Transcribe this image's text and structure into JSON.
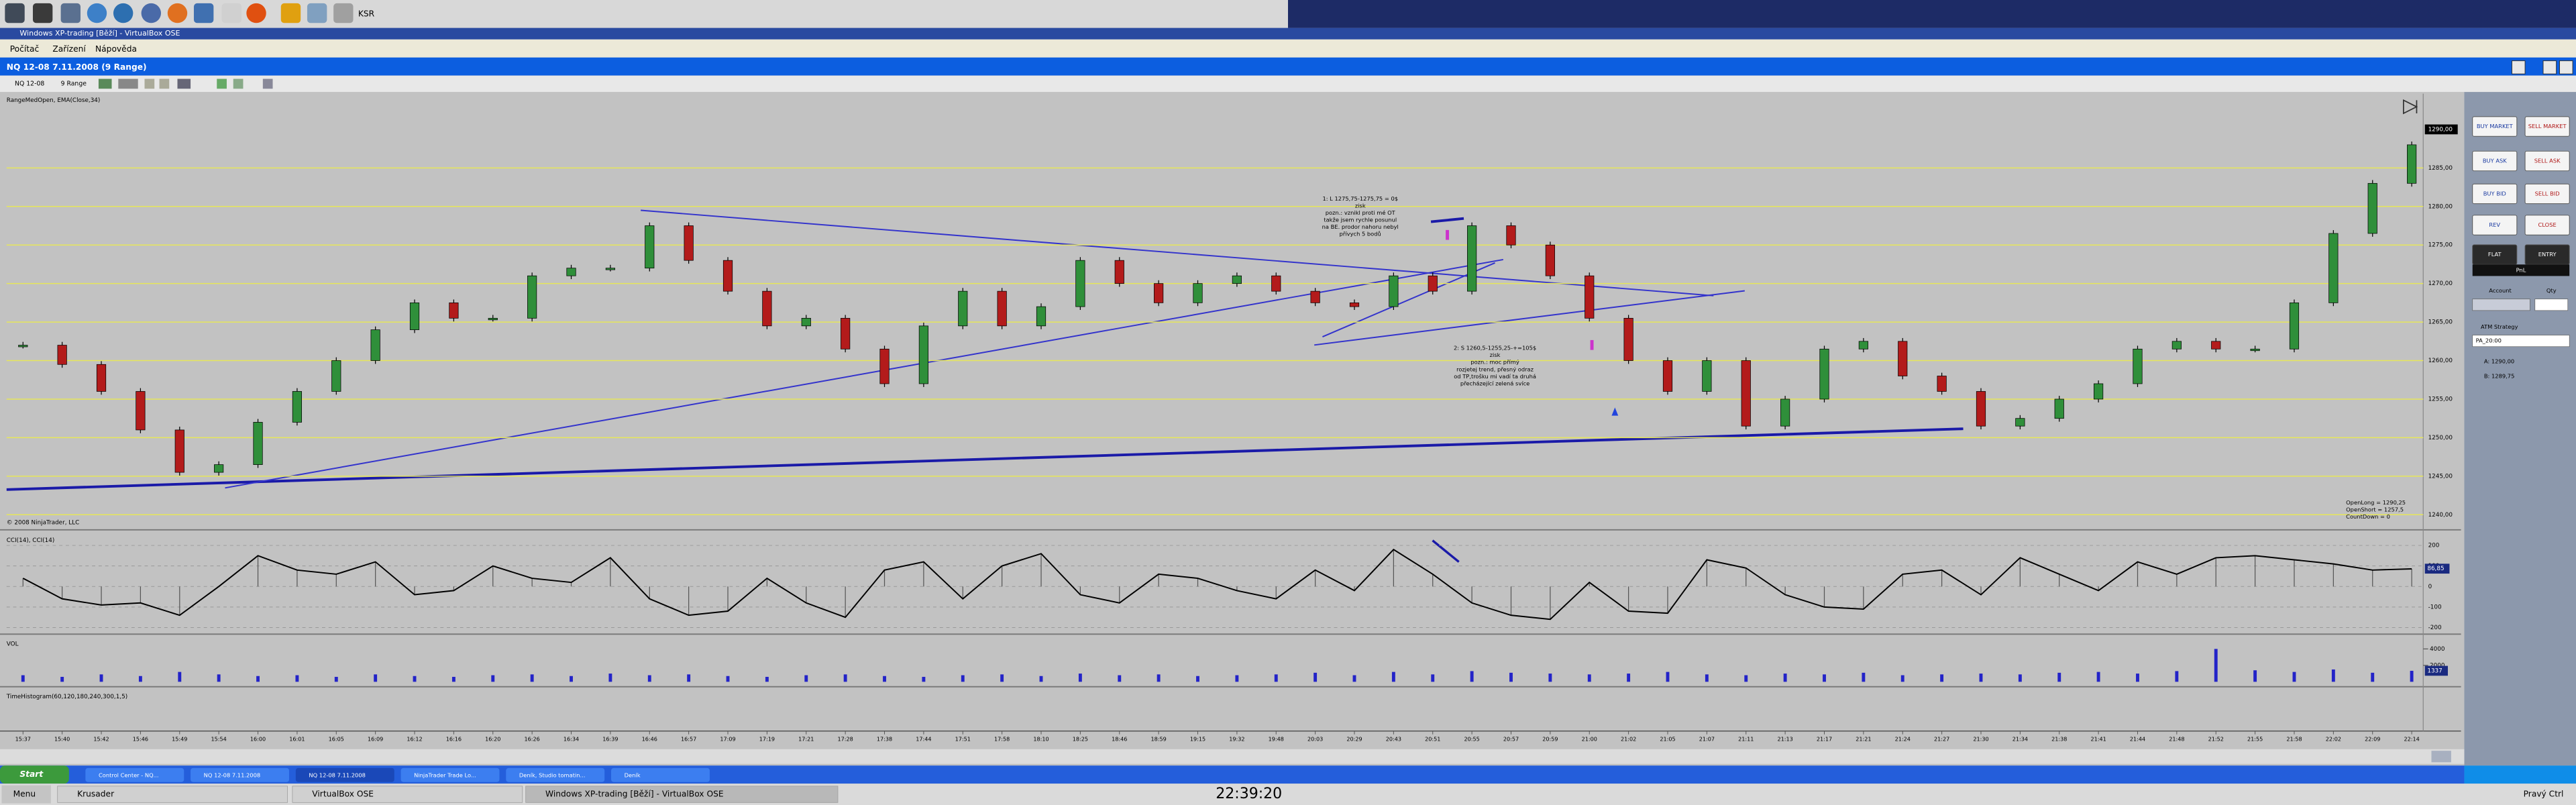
{
  "host_panel": {
    "label": "KSR"
  },
  "vm_window": {
    "title": "Windows XP-trading [Běží] - VirtualBox OSE",
    "menu": [
      "Počítač",
      "Zařízení",
      "Nápověda"
    ]
  },
  "chart_window": {
    "title": "NQ 12-08  7.11.2008 (9 Range)",
    "instrument": "NQ 12-08",
    "period": "9 Range"
  },
  "chart_data": [
    {
      "type": "candlestick",
      "title": "RangeMedOpen, EMA(Close,34)",
      "copyright": "© 2008 NinjaTrader, LLC",
      "categories": [
        "15:37",
        "15:40",
        "15:42",
        "15:46",
        "15:49",
        "15:54",
        "16:00",
        "16:01",
        "16:05",
        "16:09",
        "16:12",
        "16:16",
        "16:20",
        "16:26",
        "16:34",
        "16:39",
        "16:46",
        "16:57",
        "17:09",
        "17:19",
        "17:21",
        "17:28",
        "17:38",
        "17:44",
        "17:51",
        "17:58",
        "18:10",
        "18:25",
        "18:46",
        "18:59",
        "19:15",
        "19:32",
        "19:48",
        "20:03",
        "20:29",
        "20:43",
        "20:51",
        "20:55",
        "20:57",
        "20:59",
        "21:00",
        "21:02",
        "21:05",
        "21:07",
        "21:11",
        "21:13",
        "21:17",
        "21:21",
        "21:24",
        "21:27",
        "21:30",
        "21:34",
        "21:38",
        "21:41",
        "21:44",
        "21:48",
        "21:52",
        "21:55",
        "21:58",
        "22:02",
        "22:09",
        "22:14"
      ],
      "values": [
        1262,
        1259.5,
        1256,
        1251,
        1245.5,
        1246.5,
        1252,
        1256,
        1260,
        1264,
        1267.5,
        1265.5,
        1265.5,
        1271,
        1272,
        1272,
        1277.5,
        1273,
        1269,
        1264.5,
        1265.5,
        1261.5,
        1257,
        1264.5,
        1269,
        1264.5,
        1267,
        1273,
        1270,
        1267.5,
        1270,
        1271,
        1269,
        1267.5,
        1267,
        1271,
        1269,
        1277.5,
        1275,
        1271,
        1265.5,
        1260,
        1256,
        1260,
        1251.5,
        1255,
        1261.5,
        1262.5,
        1258,
        1256,
        1251.5,
        1252.5,
        1255,
        1257,
        1261.5,
        1262.5,
        1261.5,
        1261.5,
        1267.5,
        1276.5,
        1283,
        1288
      ],
      "up_color": "#2f8f3a",
      "down_color": "#b31b1b",
      "ylim": [
        1239,
        1294
      ],
      "yticks": [
        {
          "value": 1285,
          "label": "1285,00"
        },
        {
          "value": 1280,
          "label": "1280,00"
        },
        {
          "value": 1275,
          "label": "1275,00"
        },
        {
          "value": 1270,
          "label": "1270,00"
        },
        {
          "value": 1265,
          "label": "1265,00"
        },
        {
          "value": 1260,
          "label": "1260,00"
        },
        {
          "value": 1255,
          "label": "1255,00"
        },
        {
          "value": 1250,
          "label": "1250,00"
        },
        {
          "value": 1245,
          "label": "1245,00"
        },
        {
          "value": 1240,
          "label": "1240,00"
        }
      ],
      "grid_color": "#e6e65a",
      "last_price": {
        "value": 1290,
        "label": "1290,00"
      },
      "annotations": [
        [
          "1: L 1275,75-1275,75 = 0$",
          "zisk",
          "pozn.: vznikl proti mé OT",
          "takže jsem rychle posunul",
          "na BE. prodor nahoru nebyl",
          "přívych 5 bodů"
        ],
        [
          "2: S 1260,5-1255,25-+=105$",
          "zisk",
          "pozn.: moc přímý",
          "rozjetej trend, přesný odraz",
          "od TP,trošku mi vadí ta druhá",
          "přecházející zelená svíce"
        ]
      ],
      "info": [
        "OpenLong = 1290,25",
        "OpenShort = 1257,5",
        "CountDown = 0"
      ]
    },
    {
      "type": "line",
      "title": "CCI(14), CCI(14)",
      "values": [
        40,
        -60,
        -90,
        -80,
        -140,
        0,
        150,
        80,
        60,
        120,
        -40,
        -20,
        100,
        40,
        20,
        140,
        -60,
        -140,
        -120,
        40,
        -80,
        -150,
        80,
        120,
        -60,
        100,
        160,
        -40,
        -80,
        60,
        40,
        -20,
        -60,
        80,
        -20,
        180,
        60,
        -80,
        -140,
        -160,
        20,
        -120,
        -130,
        130,
        90,
        -40,
        -100,
        -110,
        60,
        80,
        -40,
        140,
        60,
        -20,
        120,
        60,
        140,
        150,
        130,
        110,
        80,
        86
      ],
      "color": "#000000",
      "ylim": [
        -200,
        200
      ],
      "yticks": [
        200,
        100,
        0,
        -100,
        -200
      ],
      "last_value": {
        "value": 86.85,
        "label": "86,85"
      }
    },
    {
      "type": "bar",
      "title": "VOL",
      "values": [
        800,
        600,
        900,
        700,
        1200,
        900,
        700,
        800,
        600,
        900,
        700,
        600,
        800,
        900,
        700,
        1000,
        800,
        900,
        700,
        600,
        800,
        900,
        700,
        600,
        800,
        900,
        700,
        1000,
        800,
        900,
        700,
        800,
        900,
        1100,
        800,
        1200,
        900,
        1300,
        1100,
        1000,
        900,
        1000,
        1200,
        900,
        800,
        1000,
        900,
        1100,
        800,
        900,
        1000,
        900,
        1100,
        1200,
        1000,
        1300,
        4000,
        1400,
        1200,
        1500,
        1100,
        1337
      ],
      "color": "#2323c8",
      "ylim": [
        0,
        4000
      ],
      "yticks": [
        4000,
        2000
      ],
      "last_value": 1337
    }
  ],
  "time_histogram": {
    "title": "TimeHistogram(60,120,180,240,300,1,5)"
  },
  "order_panel": {
    "buttons": [
      "BUY MARKET",
      "SELL MARKET",
      "BUY ASK",
      "SELL ASK",
      "BUY BID",
      "SELL BID",
      "REV",
      "CLOSE",
      "FLAT",
      "ENTRY"
    ],
    "pnl": "PnL",
    "account_label": "Account",
    "qty_label": "Qty",
    "atm_label": "ATM Strategy",
    "atm_value": "PA_20:00",
    "quotes": [
      "A: 1290,00",
      "B: 1289,75"
    ]
  },
  "xp_taskbar": {
    "start": "Start",
    "items": [
      "Control Center - NQ...",
      "NQ 12-08 7.11.2008",
      "NQ 12-08 7.11.2008",
      "NinjaTrader Trade Lo...",
      "Deník, Studio tomatin...",
      "Deník"
    ]
  },
  "host_taskbar": {
    "menu": "Menu",
    "items": [
      "Krusader",
      "VirtualBox OSE",
      "Windows XP-trading [Běží] - VirtualBox OSE"
    ],
    "clock": "22:39:20",
    "right": "Pravý Ctrl"
  }
}
